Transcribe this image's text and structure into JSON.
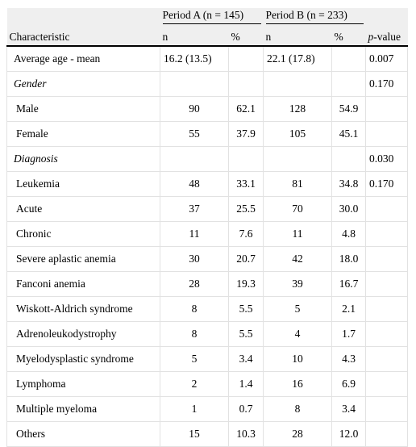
{
  "table": {
    "group_headers": [
      "Period A (n = 145)",
      "Period B (n = 233)"
    ],
    "columns": [
      "Characteristic",
      "n",
      "%",
      "n",
      "%"
    ],
    "p_value_header": [
      "p",
      "-value"
    ],
    "rows": [
      {
        "cells": [
          "Average age - mean",
          "16.2 (13.5)",
          null,
          "22.1 (17.8)",
          null,
          "0.007"
        ]
      },
      {
        "italic": true,
        "cells": [
          "Gender",
          null,
          null,
          null,
          null,
          "0.170"
        ]
      },
      {
        "cells": [
          "Male",
          "90",
          "62.1",
          "128",
          "54.9",
          null
        ]
      },
      {
        "cells": [
          "Female",
          "55",
          "37.9",
          "105",
          "45.1",
          null
        ]
      },
      {
        "italic": true,
        "cells": [
          "Diagnosis",
          null,
          null,
          null,
          null,
          "0.030"
        ]
      },
      {
        "cells": [
          "Leukemia",
          "48",
          "33.1",
          "81",
          "34.8",
          "0.170"
        ]
      },
      {
        "cells": [
          "Acute",
          "37",
          "25.5",
          "70",
          "30.0",
          null
        ]
      },
      {
        "cells": [
          "Chronic",
          "11",
          "7.6",
          "11",
          "4.8",
          null
        ]
      },
      {
        "cells": [
          "Severe aplastic anemia",
          "30",
          "20.7",
          "42",
          "18.0",
          null
        ]
      },
      {
        "cells": [
          "Fanconi anemia",
          "28",
          "19.3",
          "39",
          "16.7",
          null
        ]
      },
      {
        "cells": [
          "Wiskott-Aldrich syndrome",
          "8",
          "5.5",
          "5",
          "2.1",
          null
        ]
      },
      {
        "cells": [
          "Adrenoleukodystrophy",
          "8",
          "5.5",
          "4",
          "1.7",
          null
        ]
      },
      {
        "cells": [
          "Myelodysplastic syndrome",
          "5",
          "3.4",
          "10",
          "4.3",
          null
        ]
      },
      {
        "cells": [
          "Lymphoma",
          "2",
          "1.4",
          "16",
          "6.9",
          null
        ]
      },
      {
        "cells": [
          "Multiple myeloma",
          "1",
          "0.7",
          "8",
          "3.4",
          null
        ]
      },
      {
        "cells": [
          "Others",
          "15",
          "10.3",
          "28",
          "12.0",
          null
        ]
      }
    ]
  }
}
